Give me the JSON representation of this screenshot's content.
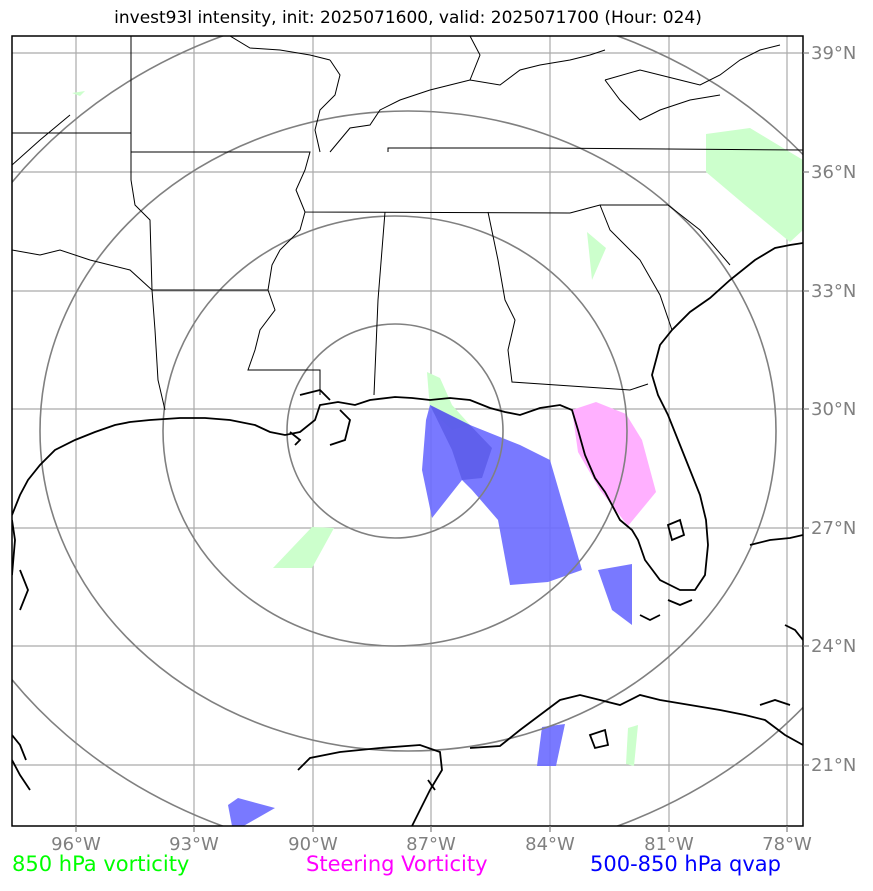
{
  "figure": {
    "title": "invest93l intensity, init: 2025071600, valid: 2025071700 (Hour: 024)"
  },
  "axes": {
    "lon_ticks": [
      "96°W",
      "93°W",
      "90°W",
      "87°W",
      "84°W",
      "81°W",
      "78°W"
    ],
    "lat_ticks": [
      "39°N",
      "36°N",
      "33°N",
      "30°N",
      "27°N",
      "24°N",
      "21°N"
    ],
    "lon_values": [
      -96,
      -93,
      -90,
      -87,
      -84,
      -81,
      -78
    ],
    "lat_values": [
      39,
      36,
      33,
      30,
      27,
      24,
      21
    ],
    "lon_range": [
      -97.5,
      -77.8
    ],
    "lat_range": [
      19.5,
      39.5
    ],
    "grid": true,
    "tick_color": "#808080"
  },
  "range_rings": {
    "center": [
      -87.7,
      29.5
    ],
    "count": 4,
    "color": "#808080"
  },
  "legend": {
    "vort850": {
      "label": "850 hPa vorticity",
      "color": "#00ff00"
    },
    "steering": {
      "label": "Steering Vorticity",
      "color": "#ff00ff"
    },
    "qvap": {
      "label": "500-850 hPa qvap",
      "color": "#0000ff"
    }
  },
  "fills": {
    "vort850_color": "#ccffcc",
    "steering_color": "#ffaaff",
    "qvap_color": "#6a6aff"
  }
}
